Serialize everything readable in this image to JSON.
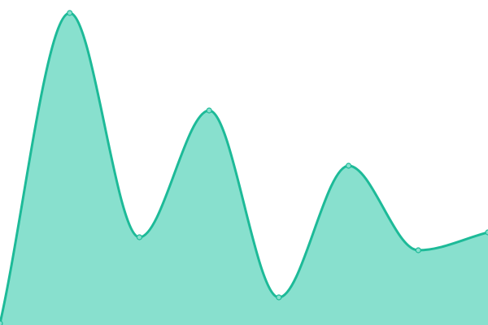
{
  "chart_data": {
    "type": "area",
    "values": [
      0.5,
      96,
      27,
      66,
      8.5,
      49,
      23,
      28.5
    ],
    "ylim": [
      0,
      100
    ],
    "color": "#1dba98",
    "fill": "#88e0ce"
  }
}
